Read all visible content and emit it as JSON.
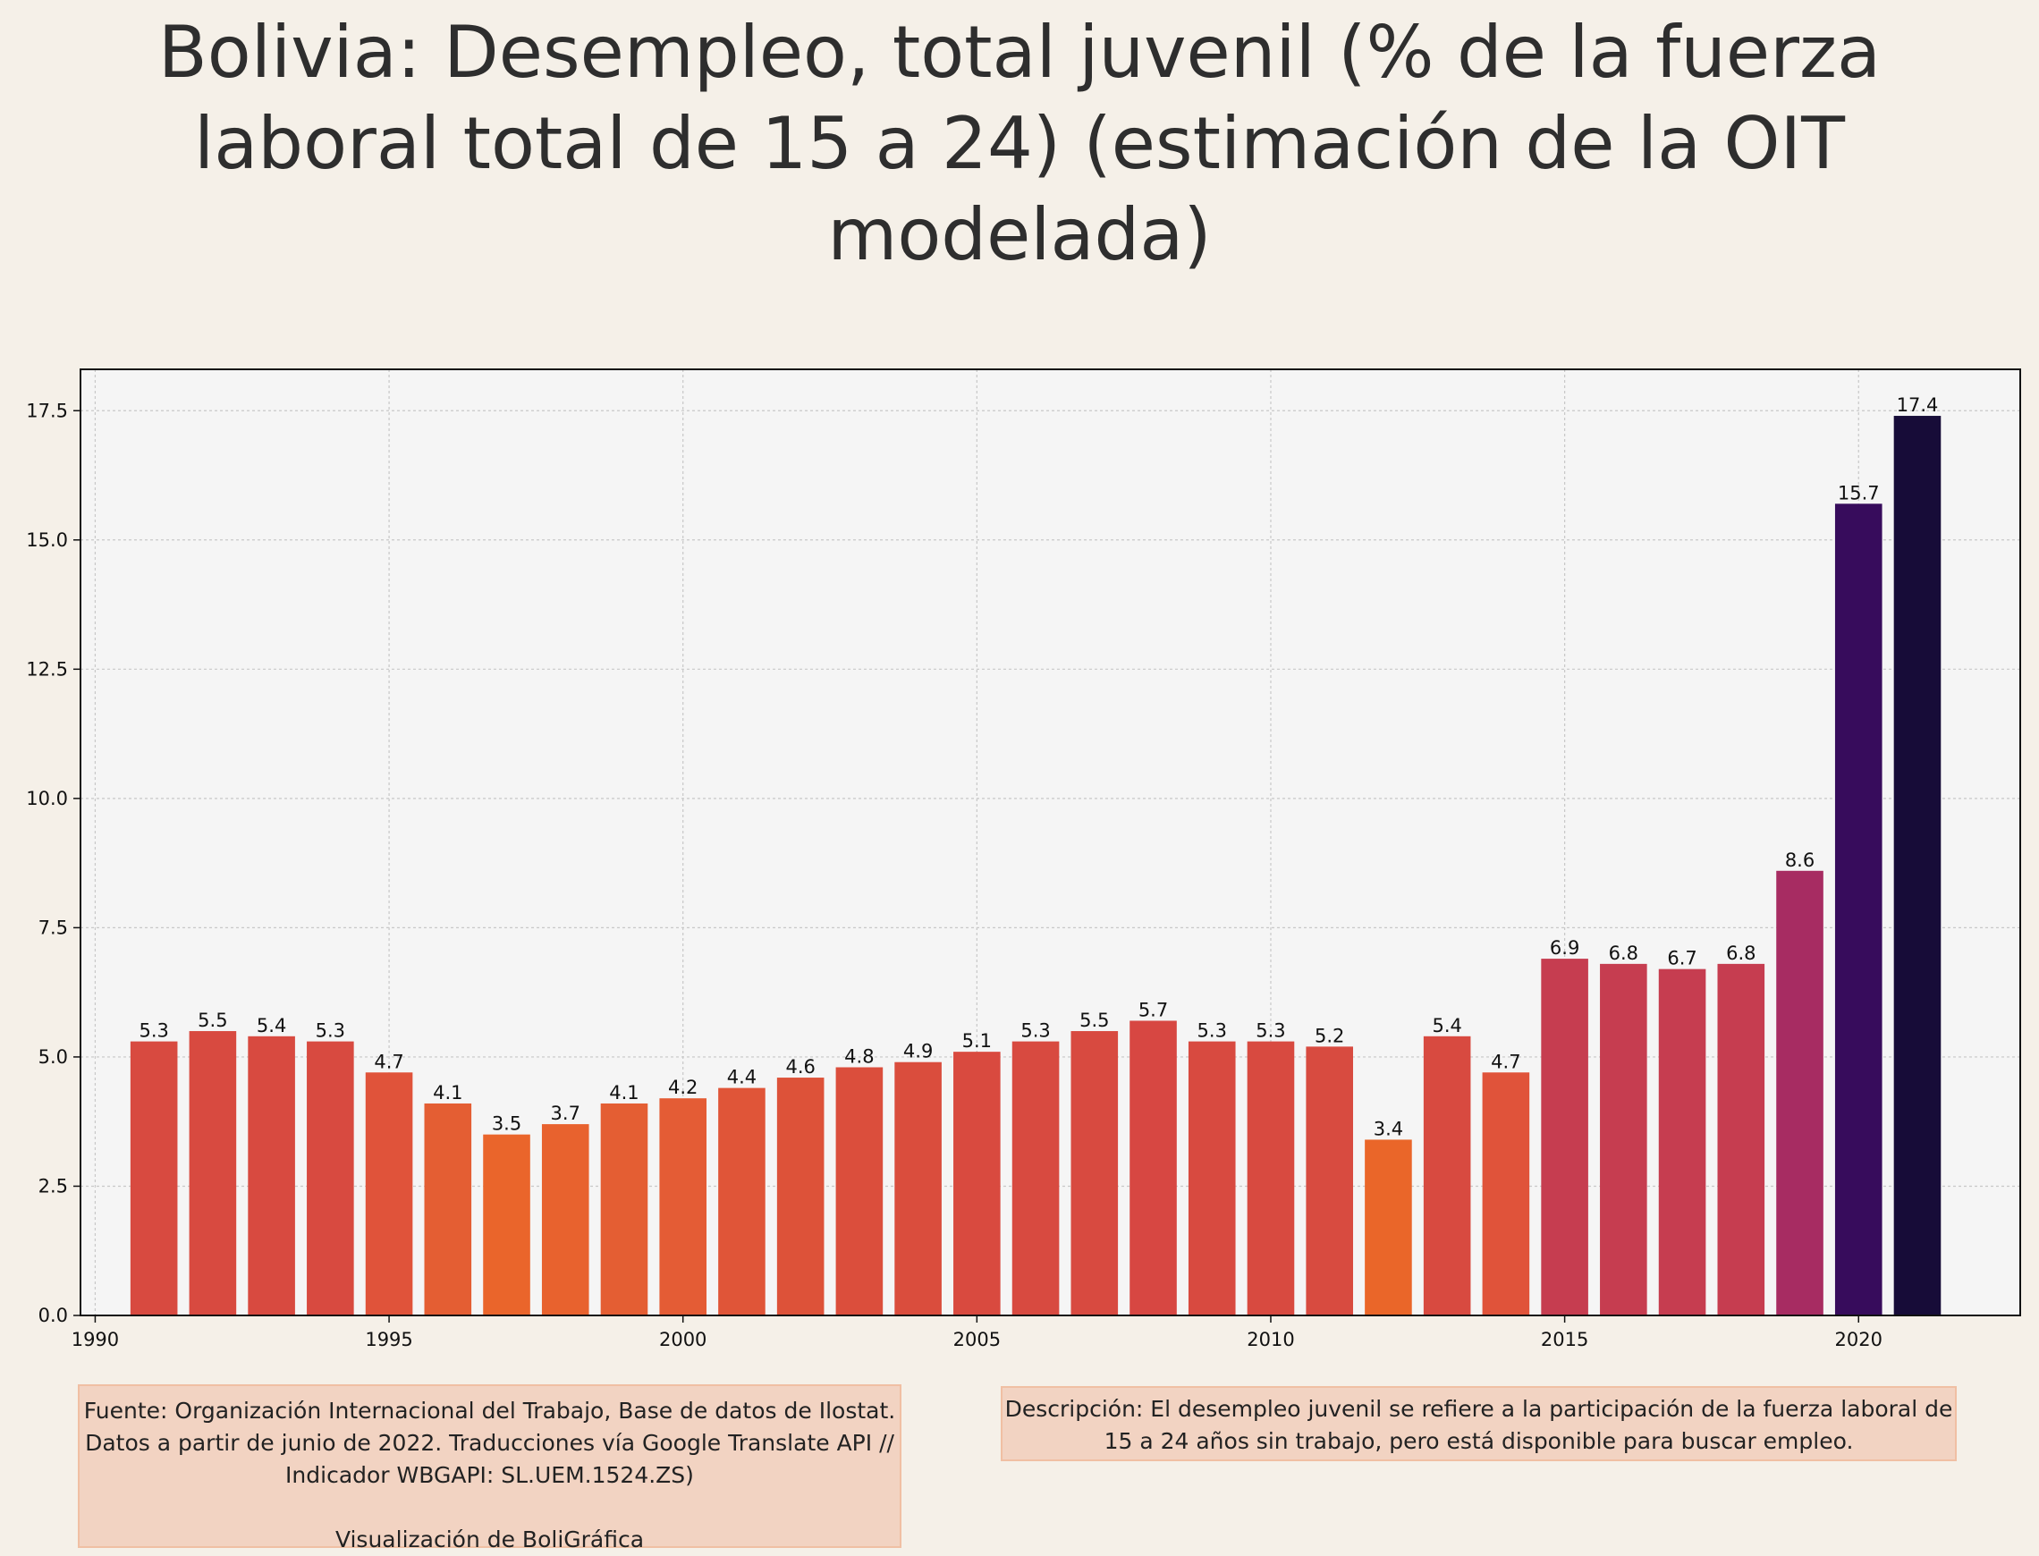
{
  "title": "Bolivia:  Desempleo, total juvenil (% de la fuerza laboral total de 15 a 24) (estimación de la OIT modelada)",
  "source": {
    "text": "Fuente: Organización Internacional del Trabajo, Base de datos de Ilostat. Datos a partir de junio de 2022. Traducciones vía Google Translate API // Indicador WBGAPI: SL.UEM.1524.ZS)",
    "credit": "Visualización de BoliGráfica"
  },
  "description": "Descripción: El desempleo juvenil se refiere a la participación de la fuerza laboral de 15 a 24 años sin trabajo, pero está disponible para buscar empleo.",
  "chart_data": {
    "type": "bar",
    "x": [
      1991,
      1992,
      1993,
      1994,
      1995,
      1996,
      1997,
      1998,
      1999,
      2000,
      2001,
      2002,
      2003,
      2004,
      2005,
      2006,
      2007,
      2008,
      2009,
      2010,
      2011,
      2012,
      2013,
      2014,
      2015,
      2016,
      2017,
      2018,
      2019,
      2020,
      2021
    ],
    "values": [
      5.3,
      5.5,
      5.4,
      5.3,
      4.7,
      4.1,
      3.5,
      3.7,
      4.1,
      4.2,
      4.4,
      4.6,
      4.8,
      4.9,
      5.1,
      5.3,
      5.5,
      5.7,
      5.3,
      5.3,
      5.2,
      3.4,
      5.4,
      4.7,
      6.9,
      6.8,
      6.7,
      6.8,
      8.6,
      15.7,
      17.4
    ],
    "value_labels": [
      "5.3",
      "5.5",
      "5.4",
      "5.3",
      "4.7",
      "4.1",
      "3.5",
      "3.7",
      "4.1",
      "4.2",
      "4.4",
      "4.6",
      "4.8",
      "4.9",
      "5.1",
      "5.3",
      "5.5",
      "5.7",
      "5.3",
      "5.3",
      "5.2",
      "3.4",
      "5.4",
      "4.7",
      "6.9",
      "6.8",
      "6.7",
      "6.8",
      "8.6",
      "15.7",
      "17.4"
    ],
    "colors": [
      "#d84a40",
      "#d84a40",
      "#d84a40",
      "#d84a40",
      "#e0533a",
      "#e45e33",
      "#ea652b",
      "#e8622e",
      "#e45e33",
      "#e45c35",
      "#e05538",
      "#dd5239",
      "#db4e3c",
      "#da4d3d",
      "#d94a3f",
      "#d84a40",
      "#d84a40",
      "#d74742",
      "#d84a40",
      "#d84a40",
      "#d84b40",
      "#ea6629",
      "#d84a40",
      "#e0533a",
      "#c63d50",
      "#c63d50",
      "#c63d50",
      "#c63d50",
      "#a72c62",
      "#370c5c",
      "#170c38"
    ],
    "xlim": [
      1989.75,
      2022.75
    ],
    "ylim": [
      0,
      18.3
    ],
    "xticks": [
      1990,
      1995,
      2000,
      2005,
      2010,
      2015,
      2020
    ],
    "yticks": [
      0,
      2.5,
      5,
      7.5,
      10,
      12.5,
      15,
      17.5
    ],
    "ytick_labels": [
      "0.0",
      "2.5",
      "5.0",
      "7.5",
      "10.0",
      "12.5",
      "15.0",
      "17.5"
    ],
    "xlabel": "",
    "ylabel": "",
    "grid": true,
    "plot_bg": "#f5f5f5",
    "grid_color": "#c8c8c8"
  }
}
